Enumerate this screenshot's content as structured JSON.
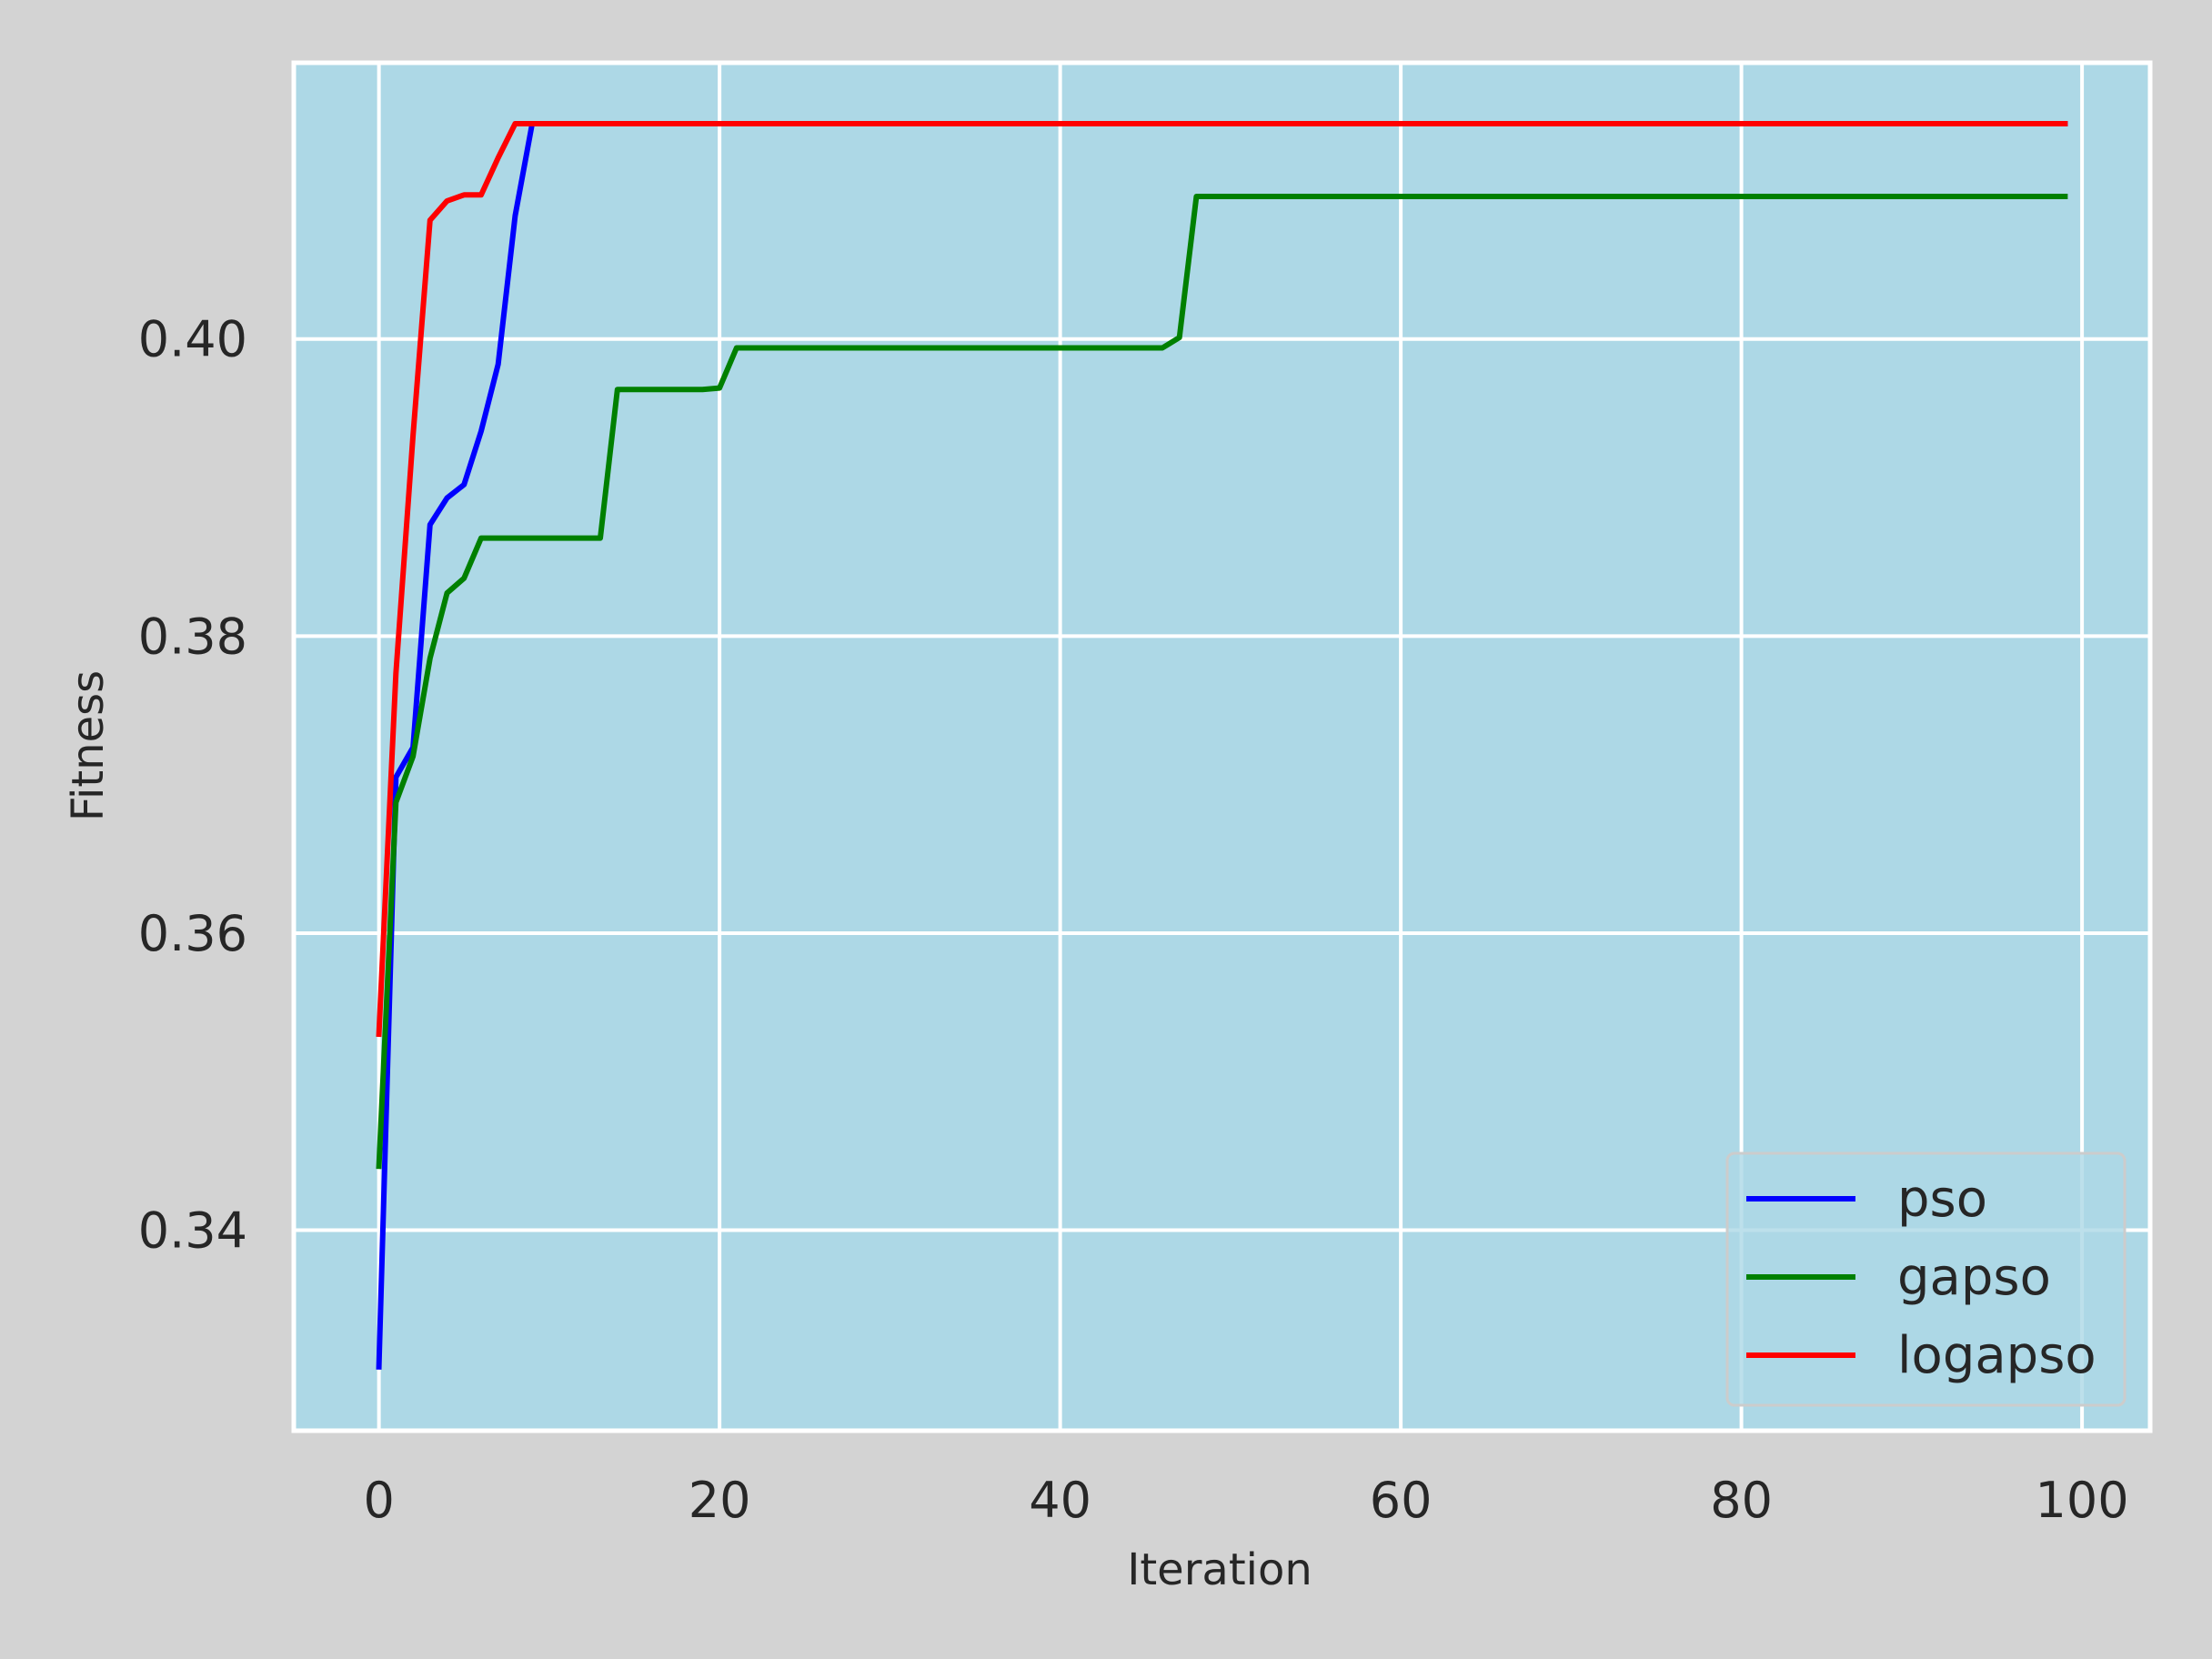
{
  "chart_data": {
    "type": "line",
    "xlabel": "Iteration",
    "ylabel": "Fitness",
    "xlim": [
      -5,
      104
    ],
    "ylim": [
      0.3265,
      0.4186
    ],
    "x_ticks": [
      0,
      20,
      40,
      60,
      80,
      100
    ],
    "x_tick_labels": [
      "0",
      "20",
      "40",
      "60",
      "80",
      "100"
    ],
    "y_ticks": [
      0.34,
      0.36,
      0.38,
      0.4
    ],
    "y_tick_labels": [
      "0.34",
      "0.36",
      "0.38",
      "0.40"
    ],
    "grid": true,
    "legend_position": "lower-right",
    "colors": {
      "page_background": "#d3d3d3",
      "plot_background": "#add8e6",
      "grid": "#ffffff"
    },
    "series": [
      {
        "name": "pso",
        "color": "#0000ff",
        "points": [
          [
            0,
            0.3308
          ],
          [
            1,
            0.3705
          ],
          [
            2,
            0.3725
          ],
          [
            3,
            0.3875
          ],
          [
            4,
            0.3893
          ],
          [
            5,
            0.3902
          ],
          [
            6,
            0.3938
          ],
          [
            7,
            0.3983
          ],
          [
            8,
            0.4083
          ],
          [
            9,
            0.4145
          ],
          [
            99,
            0.4145
          ]
        ]
      },
      {
        "name": "gapso",
        "color": "#008000",
        "points": [
          [
            0,
            0.3443
          ],
          [
            1,
            0.3688
          ],
          [
            2,
            0.3719
          ],
          [
            3,
            0.3785
          ],
          [
            4,
            0.3829
          ],
          [
            5,
            0.3839
          ],
          [
            6,
            0.3866
          ],
          [
            13,
            0.3866
          ],
          [
            14,
            0.3966
          ],
          [
            19,
            0.3966
          ],
          [
            20,
            0.3967
          ],
          [
            21,
            0.3994
          ],
          [
            46,
            0.3994
          ],
          [
            47,
            0.4001
          ],
          [
            48,
            0.4096
          ],
          [
            99,
            0.4096
          ]
        ]
      },
      {
        "name": "logapso",
        "color": "#ff0000",
        "points": [
          [
            0,
            0.3532
          ],
          [
            1,
            0.3775
          ],
          [
            2,
            0.3935
          ],
          [
            3,
            0.408
          ],
          [
            4,
            0.4093
          ],
          [
            5,
            0.4097
          ],
          [
            6,
            0.4097
          ],
          [
            7,
            0.4122
          ],
          [
            8,
            0.4145
          ],
          [
            99,
            0.4145
          ]
        ]
      }
    ]
  }
}
